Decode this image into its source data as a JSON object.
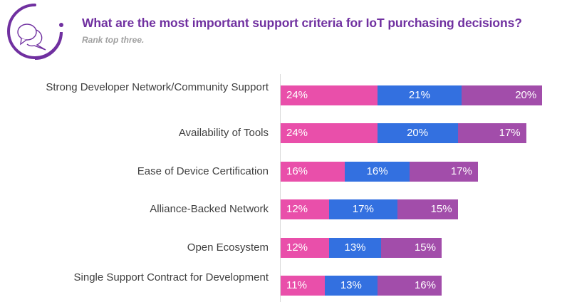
{
  "title": "What are the most important support criteria for IoT purchasing decisions?",
  "subtitle": "Rank top three.",
  "icon": "chat-bubbles-icon",
  "colors": {
    "title": "#7030A0",
    "series": [
      "#E94FAA",
      "#3370E0",
      "#A24DAA"
    ]
  },
  "chart_data": {
    "type": "bar",
    "orientation": "horizontal-stacked",
    "title": "What are the most important support criteria for IoT purchasing decisions?",
    "subtitle": "Rank top three.",
    "categories": [
      "Strong Developer Network/Community Support",
      "Availability of Tools",
      "Ease of Device Certification",
      "Alliance-Backed Network",
      "Open Ecosystem",
      "Single Support Contract for Development"
    ],
    "series": [
      {
        "values": [
          24,
          24,
          16,
          12,
          12,
          11
        ],
        "labels": [
          "24%",
          "24%",
          "16%",
          "12%",
          "12%",
          "11%"
        ],
        "color": "#E94FAA"
      },
      {
        "values": [
          21,
          20,
          16,
          17,
          13,
          13
        ],
        "labels": [
          "21%",
          "20%",
          "16%",
          "17%",
          "13%",
          "13%"
        ],
        "color": "#3370E0"
      },
      {
        "values": [
          20,
          17,
          17,
          15,
          15,
          16
        ],
        "labels": [
          "20%",
          "17%",
          "17%",
          "15%",
          "15%",
          "16%"
        ],
        "color": "#A24DAA"
      }
    ],
    "grid": false,
    "legend": "none"
  }
}
